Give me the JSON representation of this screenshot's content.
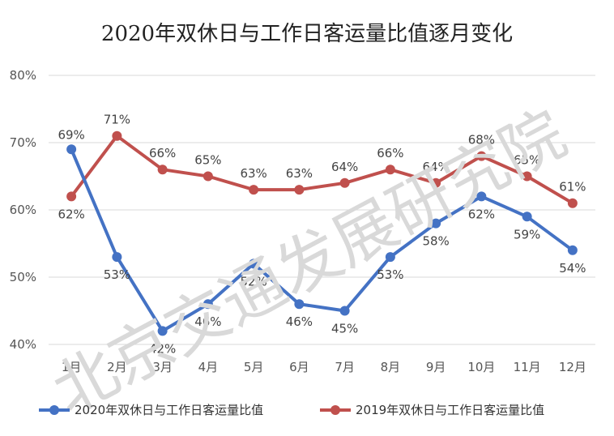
{
  "chart_data": {
    "type": "line",
    "title": "2020年双休日与工作日客运量比值逐月变化",
    "categories": [
      "1月",
      "2月",
      "3月",
      "4月",
      "5月",
      "6月",
      "7月",
      "8月",
      "9月",
      "10月",
      "11月",
      "12月"
    ],
    "y_ticks": [
      "40%",
      "50%",
      "60%",
      "70%",
      "80%"
    ],
    "ylim": [
      40,
      80
    ],
    "grid": true,
    "legend_position": "bottom",
    "series": [
      {
        "name": "2020年双休日与工作日客运量比值",
        "color": "#4472c4",
        "values": [
          69,
          53,
          42,
          46,
          52,
          46,
          45,
          53,
          58,
          62,
          59,
          54
        ],
        "labels": [
          "69%",
          "53%",
          "42%",
          "46%",
          "52%",
          "46%",
          "45%",
          "53%",
          "58%",
          "62%",
          "59%",
          "54%"
        ]
      },
      {
        "name": "2019年双休日与工作日客运量比值",
        "color": "#c0504d",
        "values": [
          62,
          71,
          66,
          65,
          63,
          63,
          64,
          66,
          64,
          68,
          65,
          61
        ],
        "labels": [
          "62%",
          "71%",
          "66%",
          "65%",
          "63%",
          "63%",
          "64%",
          "66%",
          "64%",
          "68%",
          "65%",
          "61%"
        ]
      }
    ],
    "watermark": "北京交通发展研究院"
  }
}
